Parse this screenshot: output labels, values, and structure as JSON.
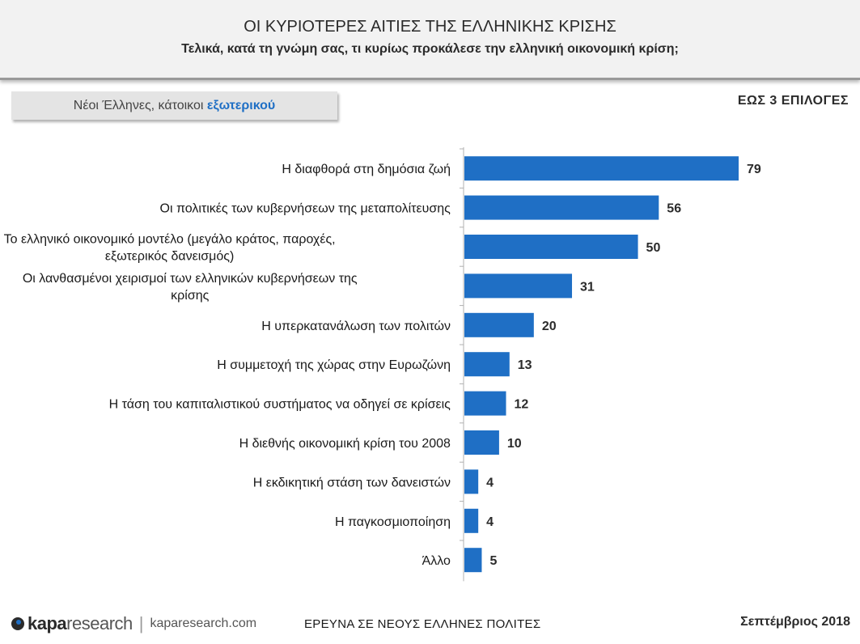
{
  "header": {
    "title": "ΟΙ ΚΥΡΙΟΤΕΡΕΣ ΑΙΤΙΕΣ ΤΗΣ ΕΛΛΗΝΙΚΗΣ ΚΡΙΣΗΣ",
    "subtitle": "Τελικά, κατά τη γνώμη σας, τι κυρίως προκάλεσε την ελληνική οικονομική κρίση;"
  },
  "segment": {
    "prefix": "Νέοι Έλληνες, κάτοικοι ",
    "highlight": "εξωτερικού"
  },
  "choices_note": "ΕΩΣ 3 ΕΠΙΛΟΓΕΣ",
  "chart_data": {
    "type": "bar",
    "orientation": "horizontal",
    "categories": [
      [
        "Η διαφθορά στη δημόσια ζωή"
      ],
      [
        "Οι πολιτικές των κυβερνήσεων της μεταπολίτευσης"
      ],
      [
        "Το ελληνικό οικονομικό μοντέλο (μεγάλο κράτος, παροχές,",
        "εξωτερικός δανεισμός)"
      ],
      [
        "Οι λανθασμένοι χειρισμοί των ελληνικών κυβερνήσεων της",
        "κρίσης"
      ],
      [
        "Η υπερκατανάλωση των πολιτών"
      ],
      [
        "Η συμμετοχή της χώρας στην Ευρωζώνη"
      ],
      [
        "Η τάση του καπιταλιστικού συστήματος να οδηγεί σε κρίσεις"
      ],
      [
        "Η διεθνής οικονομική κρίση του 2008"
      ],
      [
        "Η εκδικητική στάση των δανειστών"
      ],
      [
        "Η παγκοσμιοποίηση"
      ],
      [
        "Άλλο"
      ]
    ],
    "values": [
      79,
      56,
      50,
      31,
      20,
      13,
      12,
      10,
      4,
      4,
      5
    ],
    "bar_color": "#1f6fc5",
    "grid": false
  },
  "footer": {
    "logo_kapa": "kapa",
    "logo_research": "research",
    "logo_url": "kaparesearch.com",
    "survey": "ΕΡΕΥΝΑ ΣΕ ΝΕΟΥΣ ΕΛΛΗΝΕΣ ΠΟΛΙΤΕΣ",
    "date": "Σεπτέμβριος 2018"
  }
}
